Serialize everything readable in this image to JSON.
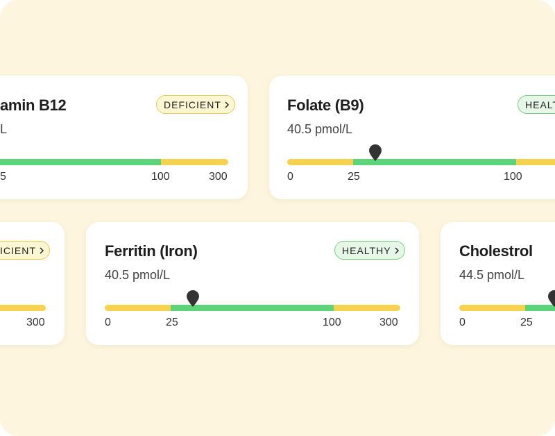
{
  "cards": [
    {
      "title": "amin B12",
      "value": "L",
      "badge": "DEFICIENT",
      "ticks": [
        "5",
        "100",
        "300"
      ]
    },
    {
      "title": "Folate (B9)",
      "value": "40.5 pmol/L",
      "badge": "HEALT",
      "ticks": [
        "0",
        "25",
        "100"
      ]
    },
    {
      "badge": "ICIENT",
      "ticks": [
        "300"
      ]
    },
    {
      "title": "Ferritin (Iron)",
      "value": "40.5 pmol/L",
      "badge": "HEALTHY",
      "ticks": [
        "0",
        "25",
        "100",
        "300"
      ]
    },
    {
      "title": "Cholestrol",
      "value": "44.5 pmol/L",
      "ticks": [
        "0",
        "25"
      ]
    }
  ]
}
